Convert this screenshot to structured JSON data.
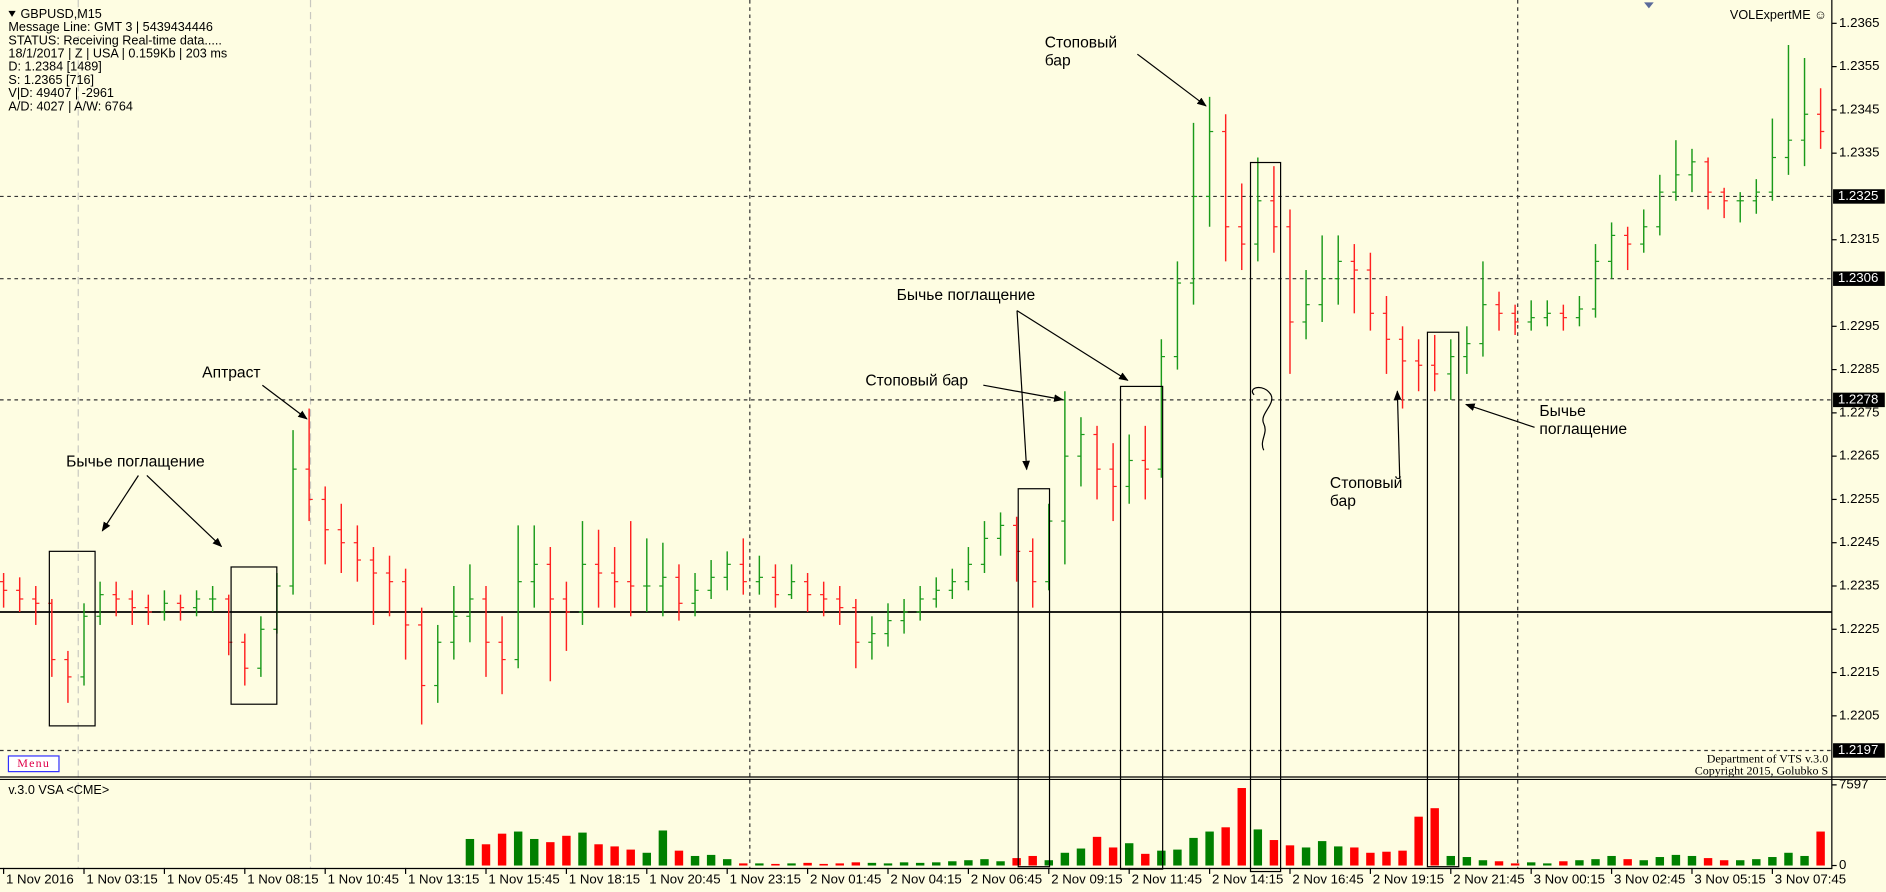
{
  "chart_data": [
    {
      "type": "ohlc",
      "title": "GBPUSD,M15",
      "info_lines": [
        "Message Line: GMT 3 | 5439434446",
        "STATUS:  Receiving Real-time data.....",
        "18/1/2017 | Z | USA | 0.159Kb | 203 ms",
        "D: 1.2384  [1489]",
        "S: 1.2365  [716]",
        "V|D: 49407 | -2961",
        "A/D: 4027 | A/W: 6764"
      ],
      "watermark": "VOLExpertME ☺",
      "menu": "Menu",
      "footer": [
        "Department of VTS  v.3.0",
        "Copyright 2015, Golubko S"
      ],
      "up_color": "#1a9a1a",
      "down_color": "#ff2020",
      "ylim": [
        1.2191,
        1.2369
      ],
      "yticks": [
        1.2365,
        1.2355,
        1.2345,
        1.2335,
        1.2315,
        1.2295,
        1.2285,
        1.2275,
        1.2265,
        1.2255,
        1.2245,
        1.2235,
        1.2225,
        1.2215,
        1.2205
      ],
      "levels": [
        1.2325,
        1.2306,
        1.2278,
        1.2197
      ],
      "reference_line": 1.2229,
      "annotations": [
        {
          "lines": [
            "Стоповый",
            "бар"
          ]
        },
        {
          "lines": [
            "Бычье поглащение"
          ]
        },
        {
          "lines": [
            "Стоповый бар"
          ]
        },
        {
          "lines": [
            "Аптраст"
          ]
        },
        {
          "lines": [
            "Бычье поглащение"
          ]
        },
        {
          "lines": [
            "Бычье",
            "поглащение"
          ]
        },
        {
          "lines": [
            "Стоповый",
            "бар"
          ]
        }
      ],
      "open": [
        1.2236,
        1.2234,
        1.2232,
        1.2231,
        1.2218,
        1.2214,
        1.2228,
        1.2233,
        1.2232,
        1.223,
        1.2229,
        1.2231,
        1.223,
        1.2232,
        1.2232,
        1.2222,
        1.2216,
        1.2225,
        1.2235,
        1.2262,
        1.2255,
        1.2248,
        1.2245,
        1.2241,
        1.2238,
        1.2236,
        1.2226,
        1.2212,
        1.2222,
        1.2228,
        1.2232,
        1.2222,
        1.2218,
        1.2236,
        1.224,
        1.2232,
        1.2229,
        1.224,
        1.2238,
        1.2236,
        1.2235,
        1.2235,
        1.2237,
        1.2231,
        1.2234,
        1.2237,
        1.224,
        1.2236,
        1.2237,
        1.2233,
        1.2236,
        1.2233,
        1.2232,
        1.223,
        1.2222,
        1.2224,
        1.2227,
        1.2229,
        1.2232,
        1.2234,
        1.2236,
        1.224,
        1.2246,
        1.2249,
        1.2243,
        1.2236,
        1.225,
        1.2265,
        1.227,
        1.2262,
        1.2258,
        1.2264,
        1.2262,
        1.2288,
        1.2305,
        1.2325,
        1.234,
        1.2318,
        1.2314,
        1.2324,
        1.2318,
        1.2296,
        1.23,
        1.2306,
        1.231,
        1.2308,
        1.2298,
        1.2292,
        1.2287,
        1.2286,
        1.2284,
        1.2288,
        1.2291,
        1.23,
        1.2298,
        1.2296,
        1.2297,
        1.2298,
        1.2297,
        1.2299,
        1.231,
        1.2316,
        1.2314,
        1.2318,
        1.2326,
        1.233,
        1.2333,
        1.2326,
        1.2324,
        1.2324,
        1.2326,
        1.2334,
        1.2338,
        1.2344
      ],
      "high": [
        1.2238,
        1.2237,
        1.2235,
        1.2232,
        1.222,
        1.2231,
        1.2236,
        1.2236,
        1.2234,
        1.2233,
        1.2234,
        1.2233,
        1.2234,
        1.2235,
        1.2233,
        1.2224,
        1.2228,
        1.2238,
        1.2271,
        1.2276,
        1.2258,
        1.2254,
        1.2249,
        1.2244,
        1.2242,
        1.2239,
        1.223,
        1.2226,
        1.2235,
        1.224,
        1.2235,
        1.2228,
        1.2249,
        1.2249,
        1.2244,
        1.2236,
        1.225,
        1.2248,
        1.2244,
        1.225,
        1.2246,
        1.2245,
        1.224,
        1.2238,
        1.2241,
        1.2243,
        1.2246,
        1.2242,
        1.224,
        1.224,
        1.2238,
        1.2236,
        1.2235,
        1.2232,
        1.2228,
        1.2231,
        1.2232,
        1.2235,
        1.2237,
        1.2239,
        1.2244,
        1.225,
        1.2252,
        1.2251,
        1.2246,
        1.2254,
        1.228,
        1.2274,
        1.2272,
        1.2268,
        1.227,
        1.2272,
        1.2292,
        1.231,
        1.2342,
        1.2348,
        1.2344,
        1.2328,
        1.2334,
        1.2332,
        1.2322,
        1.2308,
        1.2316,
        1.2316,
        1.2314,
        1.2312,
        1.2302,
        1.2295,
        1.2292,
        1.2293,
        1.2292,
        1.2295,
        1.231,
        1.2303,
        1.23,
        1.2301,
        1.2301,
        1.23,
        1.2302,
        1.2314,
        1.2319,
        1.2318,
        1.2322,
        1.233,
        1.2338,
        1.2336,
        1.2334,
        1.2327,
        1.2326,
        1.2329,
        1.2343,
        1.236,
        1.2357,
        1.235
      ],
      "low": [
        1.223,
        1.2229,
        1.2226,
        1.2214,
        1.2208,
        1.2212,
        1.2226,
        1.2228,
        1.2226,
        1.2226,
        1.2227,
        1.2227,
        1.2228,
        1.2229,
        1.2219,
        1.2212,
        1.2214,
        1.2224,
        1.2233,
        1.225,
        1.224,
        1.2238,
        1.2236,
        1.2226,
        1.2228,
        1.2218,
        1.2203,
        1.2208,
        1.2218,
        1.2222,
        1.2214,
        1.221,
        1.2216,
        1.223,
        1.2213,
        1.222,
        1.2226,
        1.223,
        1.223,
        1.2228,
        1.2229,
        1.2228,
        1.2227,
        1.2228,
        1.2232,
        1.2234,
        1.2233,
        1.2233,
        1.223,
        1.2232,
        1.2229,
        1.2228,
        1.2226,
        1.2216,
        1.2218,
        1.2221,
        1.2224,
        1.2227,
        1.223,
        1.2232,
        1.2234,
        1.2238,
        1.2242,
        1.2236,
        1.223,
        1.2234,
        1.224,
        1.2258,
        1.2255,
        1.225,
        1.2254,
        1.2255,
        1.226,
        1.2285,
        1.23,
        1.2318,
        1.231,
        1.2308,
        1.231,
        1.2312,
        1.2284,
        1.2292,
        1.2296,
        1.23,
        1.2298,
        1.2294,
        1.2284,
        1.2276,
        1.228,
        1.228,
        1.2278,
        1.2284,
        1.2288,
        1.2294,
        1.2293,
        1.2294,
        1.2295,
        1.2294,
        1.2295,
        1.2297,
        1.2306,
        1.2308,
        1.2312,
        1.2316,
        1.2324,
        1.2326,
        1.2322,
        1.232,
        1.2319,
        1.2321,
        1.2324,
        1.233,
        1.2332,
        1.2336
      ],
      "close": [
        1.2234,
        1.2232,
        1.2231,
        1.2218,
        1.2214,
        1.2228,
        1.2233,
        1.2232,
        1.223,
        1.2229,
        1.2231,
        1.223,
        1.2232,
        1.2232,
        1.2222,
        1.2216,
        1.2225,
        1.2235,
        1.2262,
        1.2255,
        1.2248,
        1.2245,
        1.2241,
        1.2238,
        1.2236,
        1.2226,
        1.2212,
        1.2222,
        1.2228,
        1.2232,
        1.2222,
        1.2218,
        1.2236,
        1.224,
        1.2232,
        1.2229,
        1.224,
        1.2238,
        1.2236,
        1.2235,
        1.2235,
        1.2237,
        1.2231,
        1.2234,
        1.2237,
        1.224,
        1.2236,
        1.2237,
        1.2233,
        1.2236,
        1.2233,
        1.2232,
        1.223,
        1.2222,
        1.2224,
        1.2227,
        1.2229,
        1.2232,
        1.2234,
        1.2236,
        1.224,
        1.2246,
        1.2249,
        1.2243,
        1.2236,
        1.225,
        1.2265,
        1.227,
        1.2262,
        1.2258,
        1.2264,
        1.2262,
        1.2288,
        1.2305,
        1.2325,
        1.234,
        1.2318,
        1.2314,
        1.2324,
        1.2318,
        1.2296,
        1.23,
        1.2306,
        1.231,
        1.2308,
        1.2298,
        1.2292,
        1.2287,
        1.2286,
        1.2284,
        1.2288,
        1.2291,
        1.23,
        1.2298,
        1.2296,
        1.2297,
        1.2298,
        1.2297,
        1.2299,
        1.231,
        1.2316,
        1.2314,
        1.2318,
        1.2326,
        1.233,
        1.2333,
        1.2326,
        1.2324,
        1.2324,
        1.2326,
        1.2334,
        1.2338,
        1.2344,
        1.234
      ]
    },
    {
      "type": "bar",
      "title": "v.3.0 VSA <CME>",
      "up_color": "#008000",
      "down_color": "#ff0000",
      "ylim": [
        0,
        7597
      ],
      "yticks": [
        0,
        7597
      ],
      "values": [
        0,
        0,
        0,
        0,
        0,
        0,
        0,
        0,
        0,
        0,
        0,
        0,
        0,
        0,
        0,
        0,
        0,
        0,
        0,
        0,
        0,
        0,
        0,
        0,
        0,
        0,
        0,
        0,
        0,
        2500,
        2000,
        3000,
        3200,
        2500,
        2200,
        2800,
        3100,
        2000,
        1800,
        1500,
        1200,
        3300,
        1400,
        900,
        1000,
        600,
        200,
        200,
        150,
        200,
        250,
        150,
        200,
        300,
        250,
        200,
        300,
        250,
        300,
        400,
        500,
        600,
        400,
        700,
        900,
        500,
        1200,
        1600,
        2700,
        1700,
        2100,
        1100,
        1400,
        1500,
        2600,
        3200,
        3600,
        7300,
        3400,
        2400,
        1900,
        1700,
        2300,
        1800,
        1700,
        1200,
        1300,
        1400,
        4600,
        5400,
        900,
        800,
        500,
        400,
        200,
        300,
        200,
        400,
        500,
        600,
        900,
        600,
        500,
        800,
        1000,
        900,
        700,
        500,
        500,
        600,
        800,
        1200,
        900,
        3200
      ],
      "xticks": [
        {
          "value": 0,
          "label": "1 Nov 2016"
        },
        {
          "value": 5,
          "label": "1 Nov 03:15"
        },
        {
          "value": 10,
          "label": "1 Nov 05:45"
        },
        {
          "value": 15,
          "label": "1 Nov 08:15"
        },
        {
          "value": 20,
          "label": "1 Nov 10:45"
        },
        {
          "value": 25,
          "label": "1 Nov 13:15"
        },
        {
          "value": 30,
          "label": "1 Nov 15:45"
        },
        {
          "value": 35,
          "label": "1 Nov 18:15"
        },
        {
          "value": 40,
          "label": "1 Nov 20:45"
        },
        {
          "value": 45,
          "label": "1 Nov 23:15"
        },
        {
          "value": 50,
          "label": "2 Nov 01:45"
        },
        {
          "value": 55,
          "label": "2 Nov 04:15"
        },
        {
          "value": 60,
          "label": "2 Nov 06:45"
        },
        {
          "value": 65,
          "label": "2 Nov 09:15"
        },
        {
          "value": 70,
          "label": "2 Nov 11:45"
        },
        {
          "value": 75,
          "label": "2 Nov 14:15"
        },
        {
          "value": 80,
          "label": "2 Nov 16:45"
        },
        {
          "value": 85,
          "label": "2 Nov 19:15"
        },
        {
          "value": 90,
          "label": "2 Nov 21:45"
        },
        {
          "value": 95,
          "label": "3 Nov 00:15"
        },
        {
          "value": 100,
          "label": "3 Nov 02:45"
        },
        {
          "value": 105,
          "label": "3 Nov 05:15"
        },
        {
          "value": 110,
          "label": "3 Nov 07:45"
        }
      ]
    }
  ]
}
